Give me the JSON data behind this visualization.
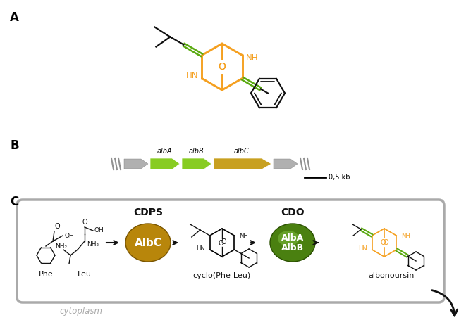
{
  "panel_A_label": "A",
  "panel_B_label": "B",
  "panel_C_label": "C",
  "orange_color": "#F5A020",
  "green_color": "#5AAA10",
  "grey_color": "#AAAAAA",
  "black_color": "#111111",
  "albA_label": "albA",
  "albB_label": "albB",
  "albC_label": "albC",
  "scale_label": "0,5 kb",
  "CDPS_label": "CDPS",
  "CDO_label": "CDO",
  "AlbC_label": "AlbC",
  "AlbA_label": "AlbA",
  "AlbB_label": "AlbB",
  "Phe_label": "Phe",
  "Leu_label": "Leu",
  "cyclo_label": "cyclo(Phe-Leu)",
  "albonoursin_label": "albonoursin",
  "cytoplasm_label": "cytoplasm",
  "bg_color": "#FFFFFF",
  "gold_face": "#B8860B",
  "gold_edge": "#7A5500",
  "dkgreen_face": "#4A8010",
  "dkgreen_edge": "#2A5000"
}
